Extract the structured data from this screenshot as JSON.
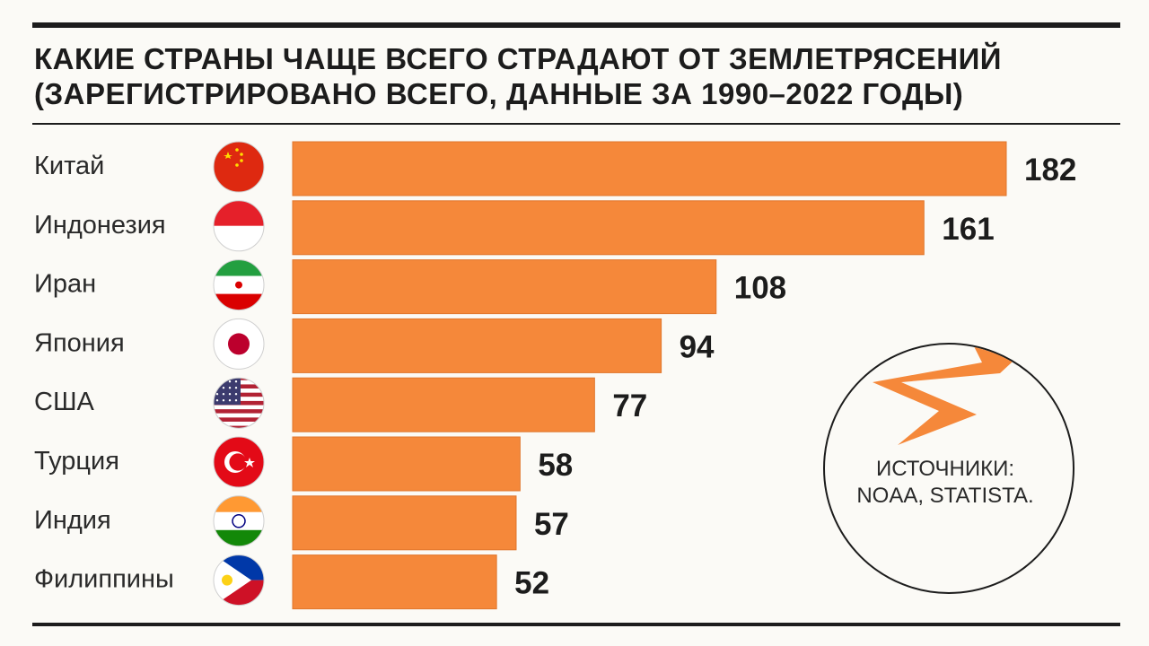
{
  "header": {
    "title_line1": "КАКИЕ СТРАНЫ ЧАЩЕ ВСЕГО СТРАДАЮТ ОТ ЗЕМЛЕТРЯСЕНИЙ",
    "title_line2": "(ЗАРЕГИСТРИРОВАНО ВСЕГО, ДАННЫЕ ЗА 1990–2022 ГОДЫ)"
  },
  "source": {
    "label": "ИСТОЧНИКИ:",
    "names": "NOAA, STATISTA."
  },
  "colors": {
    "bar": "#f5883a",
    "bolt": "#fce021",
    "text": "#1c1c1c",
    "background": "#fbfaf6"
  },
  "chart_data": {
    "type": "bar",
    "orientation": "horizontal",
    "title": "КАКИЕ СТРАНЫ ЧАЩЕ ВСЕГО СТРАДАЮТ ОТ ЗЕМЛЕТРЯСЕНИЙ (ЗАРЕГИСТРИРОВАНО ВСЕГО, ДАННЫЕ ЗА 1990–2022 ГОДЫ)",
    "categories": [
      "Китай",
      "Индонезия",
      "Иран",
      "Япония",
      "США",
      "Турция",
      "Индия",
      "Филиппины"
    ],
    "values": [
      182,
      161,
      108,
      94,
      77,
      58,
      57,
      52
    ],
    "flags": [
      "china-flag-icon",
      "indonesia-flag-icon",
      "iran-flag-icon",
      "japan-flag-icon",
      "usa-flag-icon",
      "turkey-flag-icon",
      "india-flag-icon",
      "philippines-flag-icon"
    ],
    "xlabel": "",
    "ylabel": "",
    "xlim": [
      0,
      182
    ],
    "grid": false,
    "legend": "none"
  }
}
